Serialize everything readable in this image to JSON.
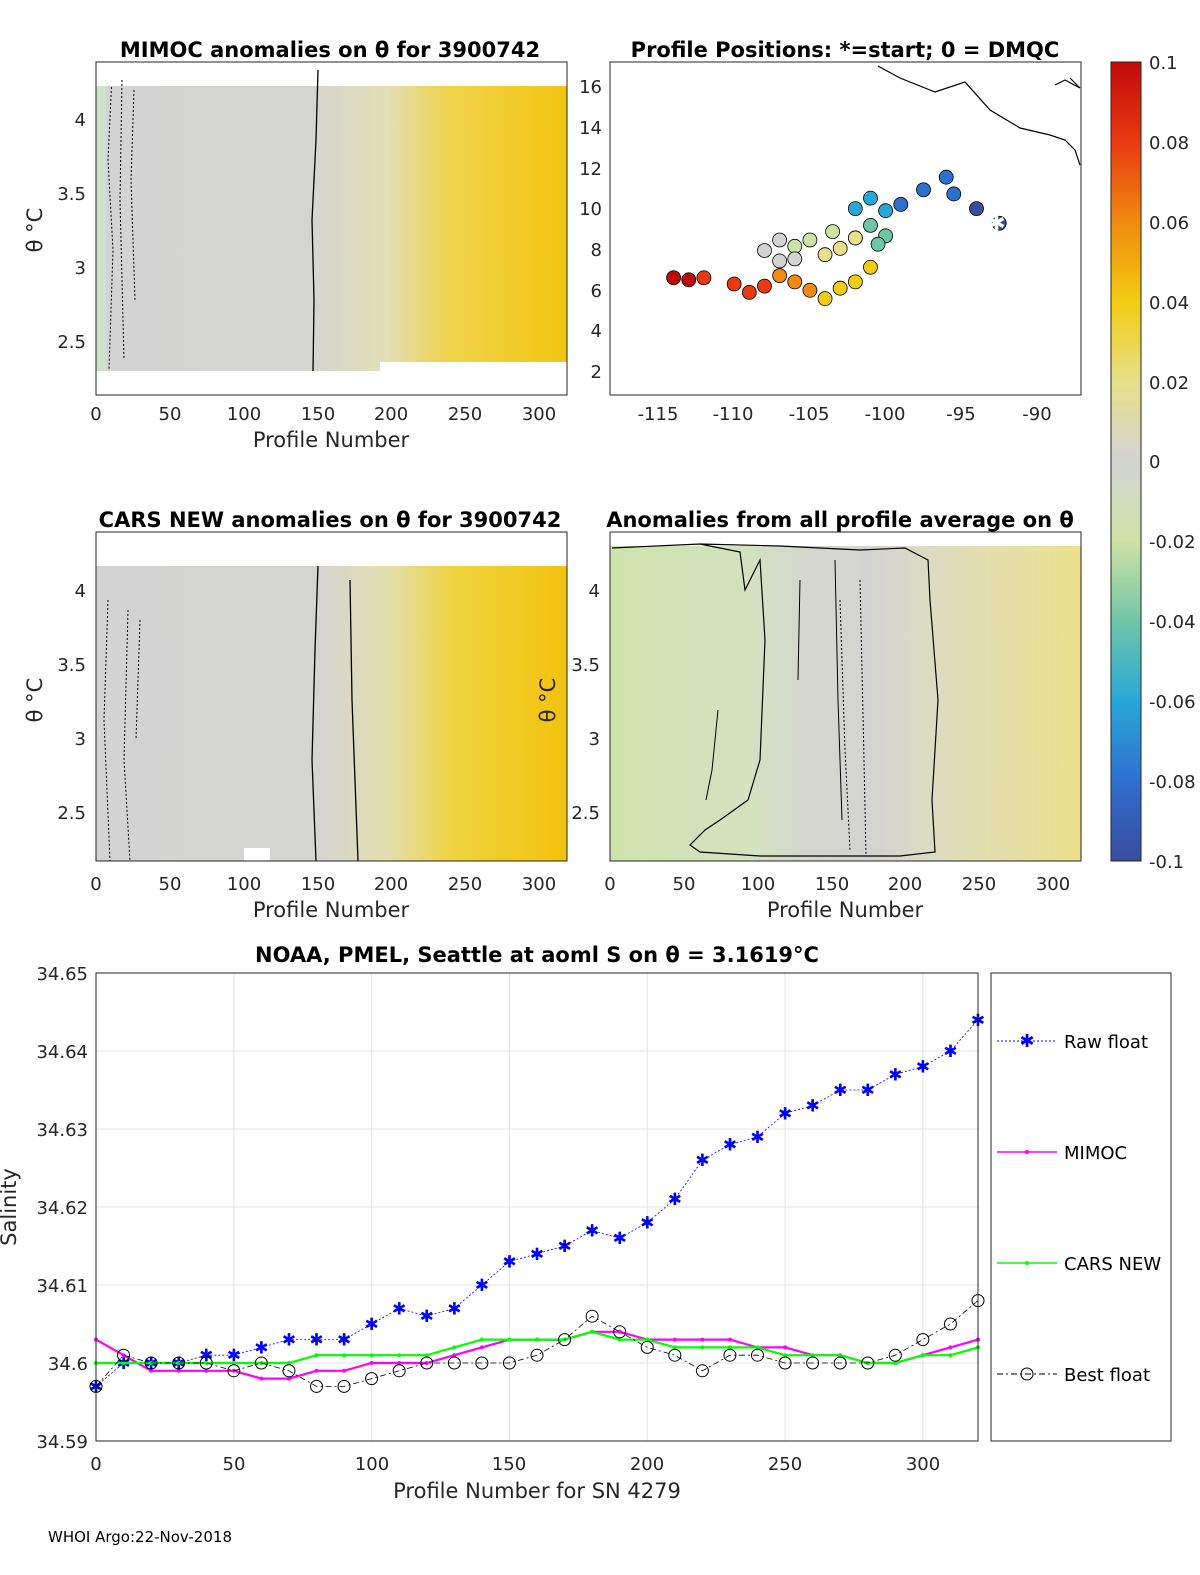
{
  "footer": "WHOI Argo:22-Nov-2018",
  "colorbar": {
    "ticks": [
      "0.1",
      "0.08",
      "0.06",
      "0.04",
      "0.02",
      "0",
      "-0.02",
      "-0.04",
      "-0.06",
      "-0.08",
      "-0.1"
    ],
    "range": [
      -0.1,
      0.1
    ],
    "colors": [
      "#3a4c9e",
      "#2f6fcf",
      "#29a8d8",
      "#6fc6a7",
      "#cfe2a6",
      "#d3d3d3",
      "#e6e08a",
      "#f2cc12",
      "#f08a10",
      "#e83a12",
      "#c00a0a"
    ]
  },
  "panels": {
    "mimoc": {
      "title": "MIMOC anomalies on θ  for 3900742",
      "xlabel": "Profile Number",
      "ylabel": "θ °C",
      "xticks": [
        "0",
        "50",
        "100",
        "150",
        "200",
        "250",
        "300"
      ],
      "yticks": [
        "4",
        "3.5",
        "3",
        "2.5"
      ]
    },
    "positions": {
      "title": "Profile Positions: *=start; 0 = DMQC",
      "xticks": [
        "-115",
        "-110",
        "-105",
        "-100",
        "-95",
        "-90"
      ],
      "yticks": [
        "16",
        "14",
        "12",
        "10",
        "8",
        "6",
        "4",
        "2"
      ]
    },
    "cars": {
      "title": "CARS NEW anomalies on θ for 3900742",
      "xlabel": "Profile Number",
      "ylabel": "θ °C",
      "xticks": [
        "0",
        "50",
        "100",
        "150",
        "200",
        "250",
        "300"
      ],
      "yticks": [
        "4",
        "3.5",
        "3",
        "2.5"
      ]
    },
    "allavg": {
      "title": "Anomalies from all profile average on θ",
      "xlabel": "Profile Number",
      "ylabel": "θ °C",
      "xticks": [
        "0",
        "50",
        "100",
        "150",
        "200",
        "250",
        "300"
      ],
      "yticks": [
        "4",
        "3.5",
        "3",
        "2.5"
      ]
    }
  },
  "chart_data": {
    "type": "line",
    "title": "NOAA, PMEL, Seattle at aoml S on θ = 3.1619°C",
    "xlabel": "Profile Number for SN 4279",
    "ylabel": "Salinity",
    "xlim": [
      0,
      320
    ],
    "ylim": [
      34.59,
      34.65
    ],
    "xticks": [
      "0",
      "50",
      "100",
      "150",
      "200",
      "250",
      "300"
    ],
    "yticks": [
      "34.65",
      "34.64",
      "34.63",
      "34.62",
      "34.61",
      "34.6",
      "34.59"
    ],
    "grid": true,
    "legend_position": "outside-right",
    "series": [
      {
        "name": "Raw float",
        "color": "#0000ff",
        "marker": "asterisk",
        "x": [
          0,
          10,
          20,
          30,
          40,
          50,
          60,
          70,
          80,
          90,
          100,
          110,
          120,
          130,
          140,
          150,
          160,
          170,
          180,
          190,
          200,
          210,
          220,
          230,
          240,
          250,
          260,
          270,
          280,
          290,
          300,
          310,
          320
        ],
        "values": [
          34.597,
          34.6,
          34.6,
          34.6,
          34.601,
          34.601,
          34.602,
          34.603,
          34.603,
          34.603,
          34.605,
          34.607,
          34.606,
          34.607,
          34.61,
          34.613,
          34.614,
          34.615,
          34.617,
          34.616,
          34.618,
          34.621,
          34.626,
          34.628,
          34.629,
          34.632,
          34.633,
          34.635,
          34.635,
          34.637,
          34.638,
          34.64,
          34.644
        ]
      },
      {
        "name": "MIMOC",
        "color": "#ff00ff",
        "marker": "dot",
        "x": [
          0,
          10,
          20,
          30,
          40,
          50,
          60,
          70,
          80,
          90,
          100,
          110,
          120,
          130,
          140,
          150,
          160,
          170,
          180,
          190,
          200,
          210,
          220,
          230,
          240,
          250,
          260,
          270,
          280,
          290,
          300,
          310,
          320
        ],
        "values": [
          34.603,
          34.601,
          34.599,
          34.599,
          34.599,
          34.599,
          34.598,
          34.598,
          34.599,
          34.599,
          34.6,
          34.6,
          34.6,
          34.601,
          34.602,
          34.603,
          34.603,
          34.603,
          34.604,
          34.604,
          34.603,
          34.603,
          34.603,
          34.603,
          34.602,
          34.602,
          34.601,
          34.601,
          34.6,
          34.6,
          34.601,
          34.602,
          34.603
        ]
      },
      {
        "name": "CARS NEW",
        "color": "#00ff00",
        "marker": "dot",
        "x": [
          0,
          10,
          20,
          30,
          40,
          50,
          60,
          70,
          80,
          90,
          100,
          110,
          120,
          130,
          140,
          150,
          160,
          170,
          180,
          190,
          200,
          210,
          220,
          230,
          240,
          250,
          260,
          270,
          280,
          290,
          300,
          310,
          320
        ],
        "values": [
          34.6,
          34.6,
          34.6,
          34.6,
          34.6,
          34.6,
          34.6,
          34.6,
          34.601,
          34.601,
          34.601,
          34.601,
          34.601,
          34.602,
          34.603,
          34.603,
          34.603,
          34.603,
          34.604,
          34.603,
          34.603,
          34.602,
          34.602,
          34.602,
          34.602,
          34.601,
          34.601,
          34.601,
          34.6,
          34.6,
          34.601,
          34.601,
          34.602
        ]
      },
      {
        "name": "Best float",
        "color": "#000000",
        "marker": "circle",
        "x": [
          0,
          10,
          20,
          30,
          40,
          50,
          60,
          70,
          80,
          90,
          100,
          110,
          120,
          130,
          140,
          150,
          160,
          170,
          180,
          190,
          200,
          210,
          220,
          230,
          240,
          250,
          260,
          270,
          280,
          290,
          300,
          310,
          320
        ],
        "values": [
          34.597,
          34.601,
          34.6,
          34.6,
          34.6,
          34.599,
          34.6,
          34.599,
          34.597,
          34.597,
          34.598,
          34.599,
          34.6,
          34.6,
          34.6,
          34.6,
          34.601,
          34.603,
          34.606,
          34.604,
          34.602,
          34.601,
          34.599,
          34.601,
          34.601,
          34.6,
          34.6,
          34.6,
          34.6,
          34.601,
          34.603,
          34.605,
          34.608
        ]
      }
    ]
  },
  "float_track": {
    "lon": [
      -92.5,
      -94,
      -95.5,
      -96,
      -97.5,
      -99,
      -100,
      -101,
      -102,
      -101,
      -100,
      -100.5,
      -102,
      -103.5,
      -105,
      -106,
      -107,
      -108,
      -107,
      -106,
      -104,
      -103,
      -102,
      -101,
      -102,
      -103,
      -104,
      -105,
      -106,
      -107,
      -108,
      -109,
      -110,
      -112,
      -113,
      -114
    ],
    "lat": [
      9.6,
      10.3,
      11,
      11.8,
      11.2,
      10.5,
      10.2,
      10.8,
      10.3,
      9.5,
      9.0,
      8.6,
      8.9,
      9.2,
      8.8,
      8.5,
      8.8,
      8.3,
      7.8,
      7.9,
      8.1,
      8.4,
      8.9,
      7.5,
      6.8,
      6.5,
      6.0,
      6.4,
      6.8,
      7.1,
      6.6,
      6.3,
      6.7,
      7.0,
      6.9,
      7.0
    ]
  }
}
